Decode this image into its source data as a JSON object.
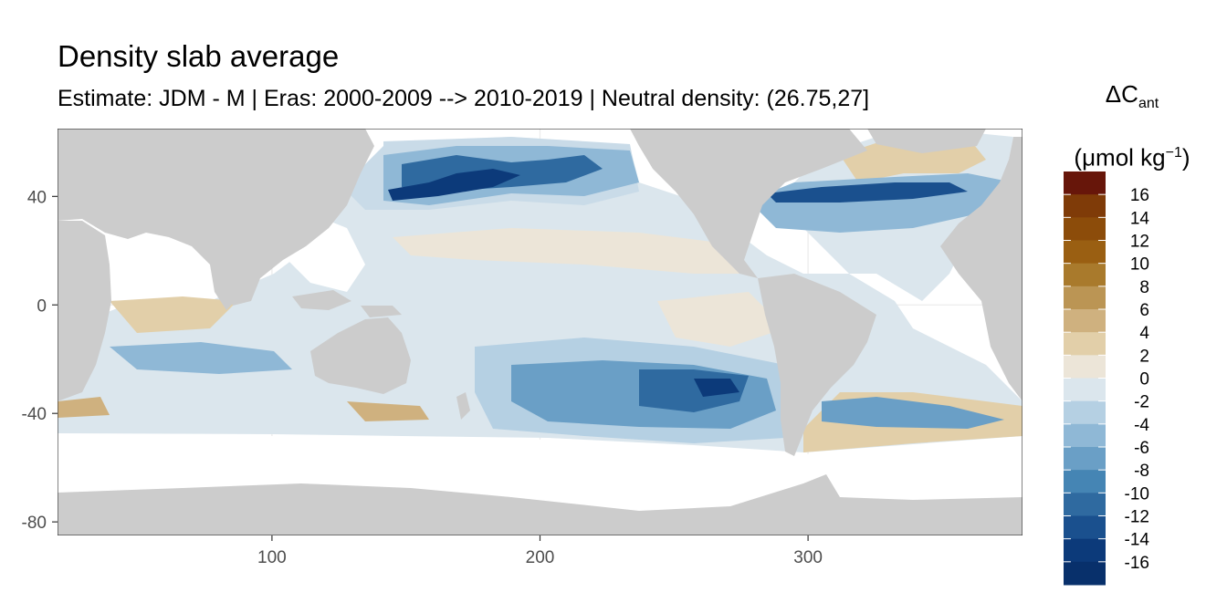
{
  "title": "Density slab average",
  "subtitle": "Estimate: JDM - M | Eras: 2000-2009 --> 2010-2019 | Neutral density: (26.75,27]",
  "legend": {
    "title_symbol": "ΔC",
    "title_sub": "ant",
    "unit_pre": "(μmol kg",
    "unit_sup": "−1",
    "unit_post": ")",
    "labels": [
      "16",
      "14",
      "12",
      "10",
      "8",
      "6",
      "4",
      "2",
      "0",
      "-2",
      "-4",
      "-6",
      "-8",
      "-10",
      "-12",
      "-14",
      "-16"
    ],
    "colors": [
      "#67160a",
      "#7f3b08",
      "#8c4c0a",
      "#9a5f12",
      "#a97a2c",
      "#bb9554",
      "#cfb17f",
      "#e2cfa9",
      "#ece5d8",
      "#dbe6ed",
      "#b5d0e3",
      "#8fb8d6",
      "#6a9fc6",
      "#4585b4",
      "#2f6aa0",
      "#1a508e",
      "#0c3a7a",
      "#08306b"
    ],
    "land_color": "#cccccc",
    "missing_color": "#ffffff"
  },
  "map": {
    "x_axis": {
      "ticks": [
        100,
        200,
        300
      ],
      "range": [
        20,
        380
      ]
    },
    "y_axis": {
      "ticks": [
        40,
        0,
        -40,
        -80
      ],
      "labels": [
        "40",
        "0",
        "-40",
        "-80"
      ],
      "range": [
        -85,
        65
      ]
    },
    "grid": true
  },
  "chart_data": {
    "type": "heatmap",
    "title": "Density slab average",
    "subtitle": "Estimate: JDM - M | Eras: 2000-2009 --> 2010-2019 | Neutral density: (26.75,27]",
    "xlabel": "",
    "ylabel": "",
    "xlim": [
      20,
      380
    ],
    "ylim": [
      -85,
      65
    ],
    "value_range": [
      -17,
      17
    ],
    "regions": [
      {
        "lon": [
          150,
          230
        ],
        "lat": [
          35,
          60
        ],
        "value": -10
      },
      {
        "lon": [
          140,
          175
        ],
        "lat": [
          33,
          45
        ],
        "value": -14
      },
      {
        "lon": [
          295,
          350
        ],
        "lat": [
          30,
          45
        ],
        "value": -6
      },
      {
        "lon": [
          300,
          345
        ],
        "lat": [
          43,
          48
        ],
        "value": -12
      },
      {
        "lon": [
          200,
          280
        ],
        "lat": [
          -55,
          -20
        ],
        "value": -6
      },
      {
        "lon": [
          240,
          280
        ],
        "lat": [
          -35,
          -25
        ],
        "value": -10
      },
      {
        "lon": [
          40,
          120
        ],
        "lat": [
          -40,
          -15
        ],
        "value": -3
      },
      {
        "lon": [
          100,
          260
        ],
        "lat": [
          -10,
          20
        ],
        "value": -1
      },
      {
        "lon": [
          320,
          345
        ],
        "lat": [
          45,
          60
        ],
        "value": 4
      },
      {
        "lon": [
          300,
          380
        ],
        "lat": [
          -50,
          -35
        ],
        "value": 3
      }
    ]
  }
}
